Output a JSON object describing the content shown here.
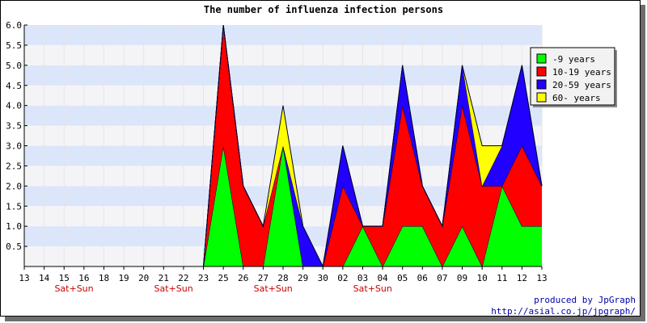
{
  "chart_data": {
    "type": "area",
    "stacked": true,
    "title": "The number of influenza infection persons",
    "xlabel": "",
    "ylabel": "",
    "ylim": [
      0,
      6
    ],
    "yticks": [
      "0.5",
      "1.0",
      "1.5",
      "2.0",
      "2.5",
      "3.0",
      "3.5",
      "4.0",
      "4.5",
      "5.0",
      "5.5",
      "6.0"
    ],
    "categories": [
      "13",
      "14",
      "15",
      "16",
      "18",
      "19",
      "20",
      "21",
      "22",
      "23",
      "25",
      "26",
      "27",
      "28",
      "29",
      "30",
      "02",
      "03",
      "04",
      "05",
      "06",
      "07",
      "09",
      "10",
      "11",
      "12",
      "13"
    ],
    "weekend_marks": [
      {
        "category_index": 2.5,
        "label": "Sat+Sun"
      },
      {
        "category_index": 7.5,
        "label": "Sat+Sun"
      },
      {
        "category_index": 12.5,
        "label": "Sat+Sun"
      },
      {
        "category_index": 17.5,
        "label": "Sat+Sun"
      }
    ],
    "grid": "horizontal bands",
    "legend_position": "top-right",
    "series": [
      {
        "name": "-9 years",
        "color": "#00ff00",
        "values": [
          0,
          0,
          0,
          0,
          0,
          0,
          0,
          0,
          0,
          0,
          3,
          0,
          0,
          3,
          0,
          0,
          0,
          1,
          0,
          1,
          1,
          0,
          1,
          0,
          2,
          1,
          1
        ]
      },
      {
        "name": "10-19 years",
        "color": "#ff0000",
        "values": [
          0,
          0,
          0,
          0,
          0,
          0,
          0,
          0,
          0,
          0,
          3,
          2,
          1,
          0,
          0,
          0,
          2,
          0,
          1,
          3,
          1,
          1,
          3,
          2,
          0,
          2,
          1
        ]
      },
      {
        "name": "20-59 years",
        "color": "#2200ff",
        "values": [
          0,
          0,
          0,
          0,
          0,
          0,
          0,
          0,
          0,
          0,
          0,
          0,
          0,
          0,
          1,
          0,
          1,
          0,
          0,
          1,
          0,
          0,
          1,
          0,
          1,
          2,
          0
        ]
      },
      {
        "name": "60- years",
        "color": "#ffff00",
        "values": [
          0,
          0,
          0,
          0,
          0,
          0,
          0,
          0,
          0,
          0,
          0,
          0,
          0,
          1,
          0,
          0,
          0,
          0,
          0,
          0,
          0,
          0,
          0,
          1,
          0,
          0,
          0
        ]
      }
    ]
  },
  "credits": {
    "line1": "produced by JpGraph",
    "line2": "http://asial.co.jp/jpgraph/"
  }
}
